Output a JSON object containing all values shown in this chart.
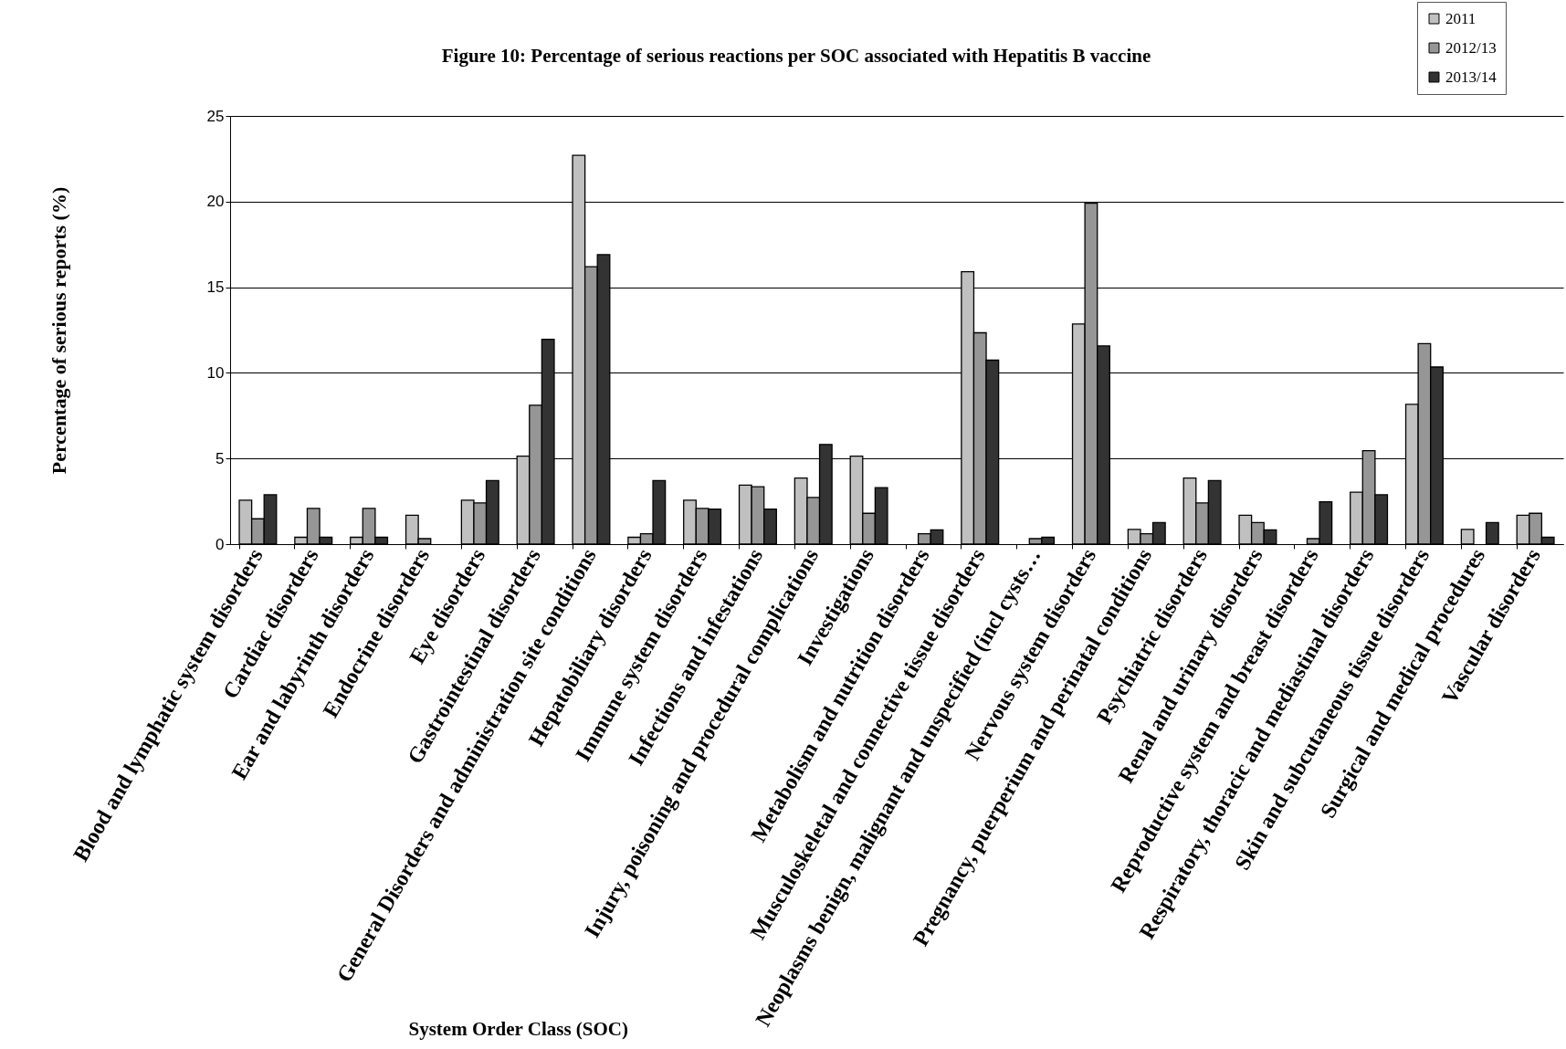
{
  "chart_data": {
    "type": "bar",
    "title": "Figure 10: Percentage of serious reactions per SOC associated with Hepatitis B vaccine",
    "xlabel": "System Order Class (SOC)",
    "ylabel": "Percentage of serious reports (%)",
    "categories": [
      "Blood and lymphatic system disorders",
      "Cardiac disorders",
      "Ear and labyrinth disorders",
      "Endocrine disorders",
      "Eye disorders",
      "Gastrointestinal disorders",
      "General Disorders and administration site conditions",
      "Hepatobiliary disorders",
      "Immune system disorders",
      "Infections and infestations",
      "Injury, poisoning and procedural complications",
      "Investigations",
      "Metabolism and nutrition disorders",
      "Musculoskeletal and connective tissue disorders",
      "Neoplasms benign, malignant and unspecified (incl cysts…",
      "Nervous system disorders",
      "Pregnancy, puerperium and perinatal conditions",
      "Psychiatric disorders",
      "Renal and urinary disorders",
      "Reproductive system and breast disorders",
      "Respiratory, thoracic and mediastinal disorders",
      "Skin and subcutaneous tissue disorders",
      "Surgical and medical procedures",
      "Vascular disorders"
    ],
    "series": [
      {
        "name": "2011",
        "color": "#c0c0c0",
        "values": [
          2.56,
          0.4,
          0.4,
          1.69,
          2.56,
          5.14,
          22.7,
          0.4,
          2.56,
          3.44,
          3.86,
          5.14,
          0,
          15.9,
          0,
          12.85,
          0.86,
          3.86,
          1.69,
          0,
          3.03,
          8.16,
          0.86,
          1.69
        ]
      },
      {
        "name": "2012/13",
        "color": "#969696",
        "values": [
          1.48,
          2.09,
          2.09,
          0.32,
          2.41,
          8.11,
          16.2,
          0.61,
          2.09,
          3.35,
          2.72,
          1.8,
          0.61,
          12.34,
          0.32,
          19.9,
          0.61,
          2.41,
          1.26,
          0.32,
          5.46,
          11.71,
          0,
          1.8
        ]
      },
      {
        "name": "2013/14",
        "color": "#333333",
        "values": [
          2.88,
          0.4,
          0.4,
          0,
          3.71,
          11.96,
          16.9,
          3.71,
          2.05,
          2.05,
          5.82,
          3.3,
          0.83,
          10.74,
          0.4,
          11.57,
          1.26,
          3.71,
          0.83,
          2.47,
          2.88,
          10.34,
          1.26,
          0.4
        ]
      }
    ],
    "ylim": [
      0,
      25
    ],
    "yticks": [
      0,
      5,
      10,
      15,
      20,
      25
    ],
    "grid": "y",
    "legend": "top right"
  }
}
